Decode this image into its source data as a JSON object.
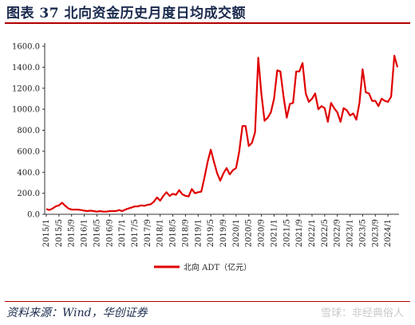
{
  "header": {
    "title": "图表 37    北向资金历史月度日均成交额"
  },
  "footer": {
    "source": "资料来源：Wind，华创证券",
    "watermark": "雪球：非经典俗人"
  },
  "colors": {
    "series": "#e00000",
    "title": "#1a2a4d",
    "rule": "#b00000"
  },
  "chart_data": {
    "type": "line",
    "ylim": [
      0,
      1600
    ],
    "yticks": [
      "0.0",
      "200.0",
      "400.0",
      "600.0",
      "800.0",
      "1000.0",
      "1200.0",
      "1400.0",
      "1600.0"
    ],
    "xticks": [
      "2015/1",
      "2015/5",
      "2015/9",
      "2016/1",
      "2016/5",
      "2016/9",
      "2017/1",
      "2017/5",
      "2017/9",
      "2018/1",
      "2018/5",
      "2018/9",
      "2019/1",
      "2019/5",
      "2019/9",
      "2020/1",
      "2020/5",
      "2020/9",
      "2021/1",
      "2021/5",
      "2021/9",
      "2022/1",
      "2022/5",
      "2022/9",
      "2023/1",
      "2023/5",
      "2023/9",
      "2024/1"
    ],
    "legend_position": "bottom",
    "series": [
      {
        "name": "北向 ADT（亿元）",
        "start": "2015/1",
        "values": [
          50,
          40,
          55,
          75,
          85,
          110,
          80,
          55,
          45,
          45,
          45,
          40,
          35,
          30,
          35,
          30,
          25,
          30,
          25,
          25,
          30,
          30,
          30,
          40,
          30,
          45,
          55,
          65,
          75,
          75,
          85,
          80,
          90,
          95,
          120,
          160,
          130,
          175,
          210,
          175,
          195,
          185,
          230,
          190,
          175,
          170,
          240,
          200,
          210,
          215,
          350,
          500,
          615,
          500,
          390,
          320,
          390,
          440,
          380,
          420,
          440,
          600,
          840,
          840,
          650,
          680,
          780,
          1490,
          1140,
          890,
          920,
          970,
          1100,
          1370,
          1360,
          1120,
          920,
          1050,
          1060,
          1360,
          1360,
          1440,
          1150,
          1070,
          1100,
          1150,
          1000,
          1030,
          1010,
          880,
          1060,
          1010,
          970,
          880,
          1010,
          990,
          940,
          960,
          900,
          1060,
          1380,
          1160,
          1150,
          1080,
          1080,
          1030,
          1100,
          1080,
          1070,
          1120,
          1510,
          1400
        ]
      }
    ]
  }
}
